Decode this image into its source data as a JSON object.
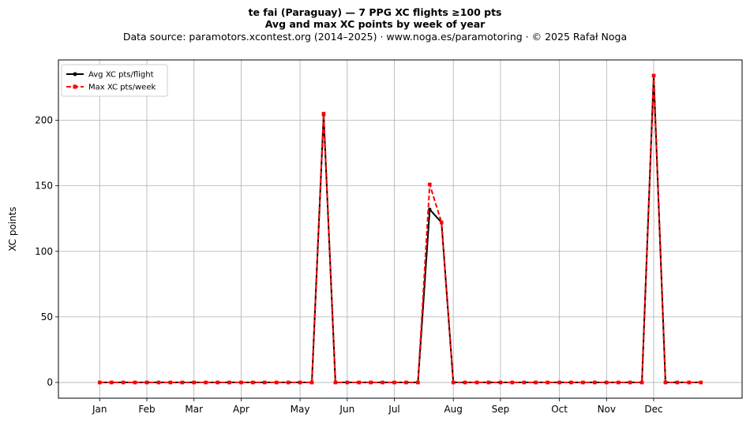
{
  "title_line1": "te fai (Paraguay)  —  7 PPG XC flights ≥100 pts",
  "title_line2": "Avg and max XC points by week of year",
  "subtitle": "Data source: paramotors.xcontest.org (2014–2025)  ·  www.noga.es/paramotoring  ·  © 2025 Rafał Noga",
  "chart_data": {
    "type": "line",
    "xlabel": "",
    "ylabel": "XC points",
    "xlim": [
      -2.5,
      55.5
    ],
    "ylim": [
      -12,
      246
    ],
    "grid": true,
    "legend_position": "top-left",
    "x": [
      1,
      2,
      3,
      4,
      5,
      6,
      7,
      8,
      9,
      10,
      11,
      12,
      13,
      14,
      15,
      16,
      17,
      18,
      19,
      20,
      21,
      22,
      23,
      24,
      25,
      26,
      27,
      28,
      29,
      30,
      31,
      32,
      33,
      34,
      35,
      36,
      37,
      38,
      39,
      40,
      41,
      42,
      43,
      44,
      45,
      46,
      47,
      48,
      49,
      50,
      51,
      52
    ],
    "x_ticks": [
      {
        "label": "Jan",
        "week": 1
      },
      {
        "label": "Feb",
        "week": 5
      },
      {
        "label": "Mar",
        "week": 9
      },
      {
        "label": "Apr",
        "week": 13
      },
      {
        "label": "May",
        "week": 18
      },
      {
        "label": "Jun",
        "week": 22
      },
      {
        "label": "Jul",
        "week": 26
      },
      {
        "label": "Aug",
        "week": 31
      },
      {
        "label": "Sep",
        "week": 35
      },
      {
        "label": "Oct",
        "week": 40
      },
      {
        "label": "Nov",
        "week": 44
      },
      {
        "label": "Dec",
        "week": 48
      }
    ],
    "y_ticks": [
      0,
      50,
      100,
      150,
      200
    ],
    "series": [
      {
        "name": "Avg XC pts/flight",
        "color": "#000000",
        "style": "solid",
        "marker": "circle",
        "values": [
          0,
          0,
          0,
          0,
          0,
          0,
          0,
          0,
          0,
          0,
          0,
          0,
          0,
          0,
          0,
          0,
          0,
          0,
          0,
          204,
          0,
          0,
          0,
          0,
          0,
          0,
          0,
          0,
          132,
          122,
          0,
          0,
          0,
          0,
          0,
          0,
          0,
          0,
          0,
          0,
          0,
          0,
          0,
          0,
          0,
          0,
          0,
          234,
          0,
          0,
          0,
          0
        ]
      },
      {
        "name": "Max XC pts/week",
        "color": "#ff0000",
        "style": "dashed",
        "marker": "square",
        "values": [
          0,
          0,
          0,
          0,
          0,
          0,
          0,
          0,
          0,
          0,
          0,
          0,
          0,
          0,
          0,
          0,
          0,
          0,
          0,
          205,
          0,
          0,
          0,
          0,
          0,
          0,
          0,
          0,
          151,
          122,
          0,
          0,
          0,
          0,
          0,
          0,
          0,
          0,
          0,
          0,
          0,
          0,
          0,
          0,
          0,
          0,
          0,
          234,
          0,
          0,
          0,
          0
        ]
      }
    ]
  }
}
